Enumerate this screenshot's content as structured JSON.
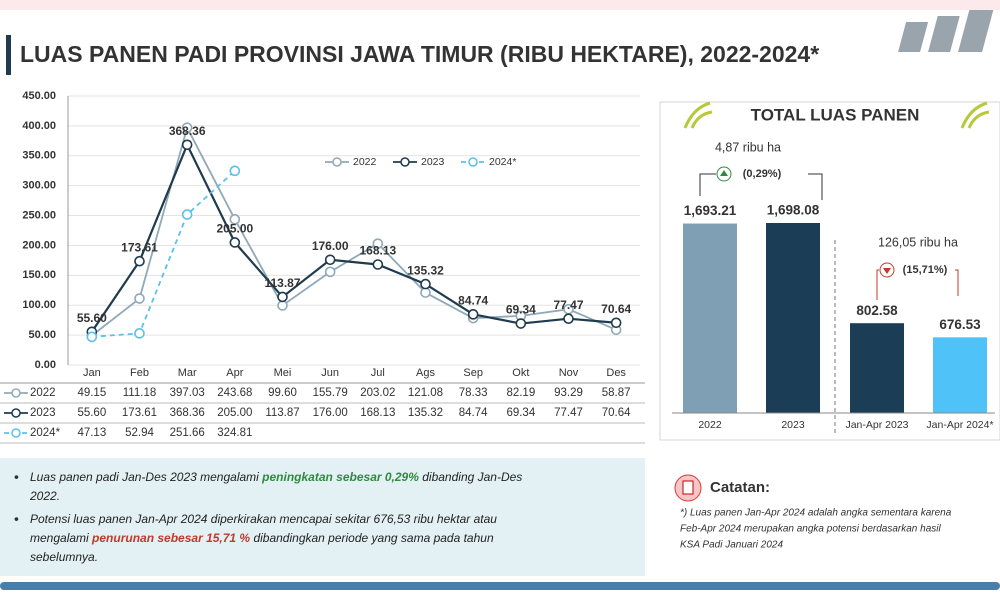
{
  "chart_data": [
    {
      "type": "line",
      "title": "LUAS PANEN PADI PROVINSI JAWA TIMUR (RIBU HEKTARE), 2022-2024*",
      "categories": [
        "Jan",
        "Feb",
        "Mar",
        "Apr",
        "Mei",
        "Jun",
        "Jul",
        "Ags",
        "Sep",
        "Okt",
        "Nov",
        "Des"
      ],
      "series": [
        {
          "name": "2022",
          "color": "#8fa9b8",
          "dashed": false,
          "values": [
            49.15,
            111.18,
            397.03,
            243.68,
            99.6,
            155.79,
            203.02,
            121.08,
            78.33,
            82.19,
            93.29,
            58.87
          ],
          "value_labels": [
            "49.15",
            "111.18",
            "397.03",
            "243.68",
            "99.60",
            "155.79",
            "203.02",
            "121.08",
            "78.33",
            "82.19",
            "93.29",
            "58.87"
          ]
        },
        {
          "name": "2023",
          "color": "#1f3b4d",
          "dashed": false,
          "values": [
            55.6,
            173.61,
            368.36,
            205,
            113.87,
            176,
            168.13,
            135.32,
            84.74,
            69.34,
            77.47,
            70.64
          ],
          "value_labels": [
            "55.60",
            "173.61",
            "368.36",
            "205.00",
            "113.87",
            "176.00",
            "168.13",
            "135.32",
            "84.74",
            "69.34",
            "77.47",
            "70.64"
          ]
        },
        {
          "name": "2024*",
          "color": "#5bc0eb",
          "dashed": true,
          "values": [
            47.13,
            52.94,
            251.66,
            324.81,
            null,
            null,
            null,
            null,
            null,
            null,
            null,
            null
          ],
          "value_labels": [
            "47.13",
            "52.94",
            "251.66",
            "324.81",
            null,
            null,
            null,
            null,
            null,
            null,
            null,
            null
          ]
        }
      ],
      "ylim": [
        0,
        450
      ],
      "yticks": [
        {
          "value": 0,
          "label": "0.00"
        },
        {
          "value": 50,
          "label": "50.00"
        },
        {
          "value": 100,
          "label": "100.00"
        },
        {
          "value": 150,
          "label": "150.00"
        },
        {
          "value": 200,
          "label": "200.00"
        },
        {
          "value": 250,
          "label": "250.00"
        },
        {
          "value": 300,
          "label": "300.00"
        },
        {
          "value": 350,
          "label": "350.00"
        },
        {
          "value": 400,
          "label": "400.00"
        },
        {
          "value": 450,
          "label": "450.00"
        }
      ],
      "grid": true
    },
    {
      "type": "bar",
      "title": "TOTAL LUAS PANEN",
      "categories": [
        "2022",
        "2023",
        "Jan-Apr 2023",
        "Jan-Apr 2024*"
      ],
      "values": [
        1693.21,
        1698.08,
        802.58,
        676.53
      ],
      "value_labels": [
        "1,693.21",
        "1,698.08",
        "802.58",
        "676.53"
      ],
      "colors": [
        "#7f9fb5",
        "#1b3d55",
        "#1b3d55",
        "#4fc3f7"
      ],
      "annotations": [
        "4,87 ribu ha",
        "(0,29%)",
        "126,05 ribu ha",
        "(15,71%)"
      ]
    }
  ],
  "notes": [
    [
      "Luas panen padi Jan-Des 2023 mengalami ",
      "peningkatan sebesar 0,29%",
      " dibanding Jan-Des",
      "2022."
    ],
    [
      "Potensi luas panen Jan-Apr 2024 diperkirakan mencapai sekitar 676,53 ribu hektar atau",
      "mengalami ",
      "penurunan sebesar 15,71 %",
      " dibandingkan periode yang sama pada tahun",
      "sebelumnya."
    ]
  ],
  "catatan": {
    "title": "Catatan:",
    "lines": [
      "*) Luas panen Jan-Apr 2024 adalah angka sementara karena",
      "Feb-Apr 2024 merupakan angka potensi berdasarkan hasil",
      "KSA Padi Januari 2024"
    ]
  }
}
